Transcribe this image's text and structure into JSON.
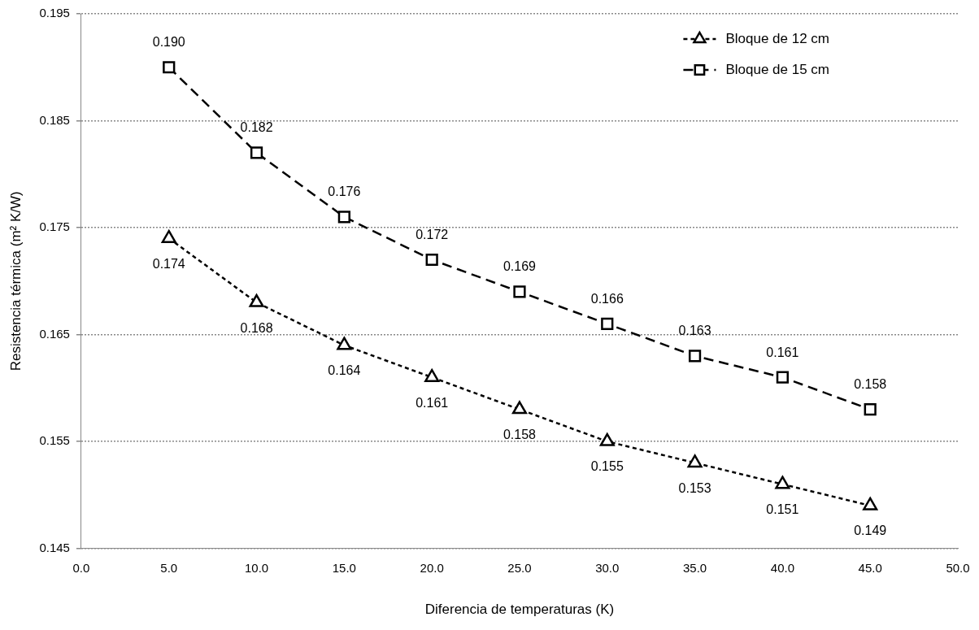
{
  "chart_data": {
    "type": "line",
    "xlabel": "Diferencia de temperaturas (K)",
    "ylabel": "Resistencia térmica (m² K/W)",
    "x": [
      5,
      10,
      15,
      20,
      25,
      30,
      35,
      40,
      45
    ],
    "xlim": [
      0,
      50
    ],
    "xticks": [
      {
        "value": 0,
        "label": "0.0"
      },
      {
        "value": 5,
        "label": "5.0"
      },
      {
        "value": 10,
        "label": "10.0"
      },
      {
        "value": 15,
        "label": "15.0"
      },
      {
        "value": 20,
        "label": "20.0"
      },
      {
        "value": 25,
        "label": "25.0"
      },
      {
        "value": 30,
        "label": "30.0"
      },
      {
        "value": 35,
        "label": "35.0"
      },
      {
        "value": 40,
        "label": "40.0"
      },
      {
        "value": 45,
        "label": "45.0"
      },
      {
        "value": 50,
        "label": "50.0"
      }
    ],
    "ylim": [
      0.145,
      0.195
    ],
    "yticks": [
      0.145,
      0.155,
      0.165,
      0.175,
      0.185,
      0.195
    ],
    "grid": "y",
    "legend": "top right",
    "series": [
      {
        "name": "Bloque de 12 cm",
        "color": "#000000",
        "marker": "triangle",
        "line_style": "dotted",
        "values": [
          0.174,
          0.168,
          0.164,
          0.161,
          0.158,
          0.155,
          0.153,
          0.151,
          0.149
        ],
        "value_labels": [
          "0.174",
          "0.168",
          "0.164",
          "0.161",
          "0.158",
          "0.155",
          "0.153",
          "0.151",
          "0.149"
        ]
      },
      {
        "name": "Bloque de 15 cm",
        "color": "#000000",
        "marker": "square",
        "line_style": "dashed",
        "values": [
          0.19,
          0.182,
          0.176,
          0.172,
          0.169,
          0.166,
          0.163,
          0.161,
          0.158
        ],
        "value_labels": [
          "0.190",
          "0.182",
          "0.176",
          "0.172",
          "0.169",
          "0.166",
          "0.163",
          "0.161",
          "0.158"
        ]
      }
    ]
  }
}
